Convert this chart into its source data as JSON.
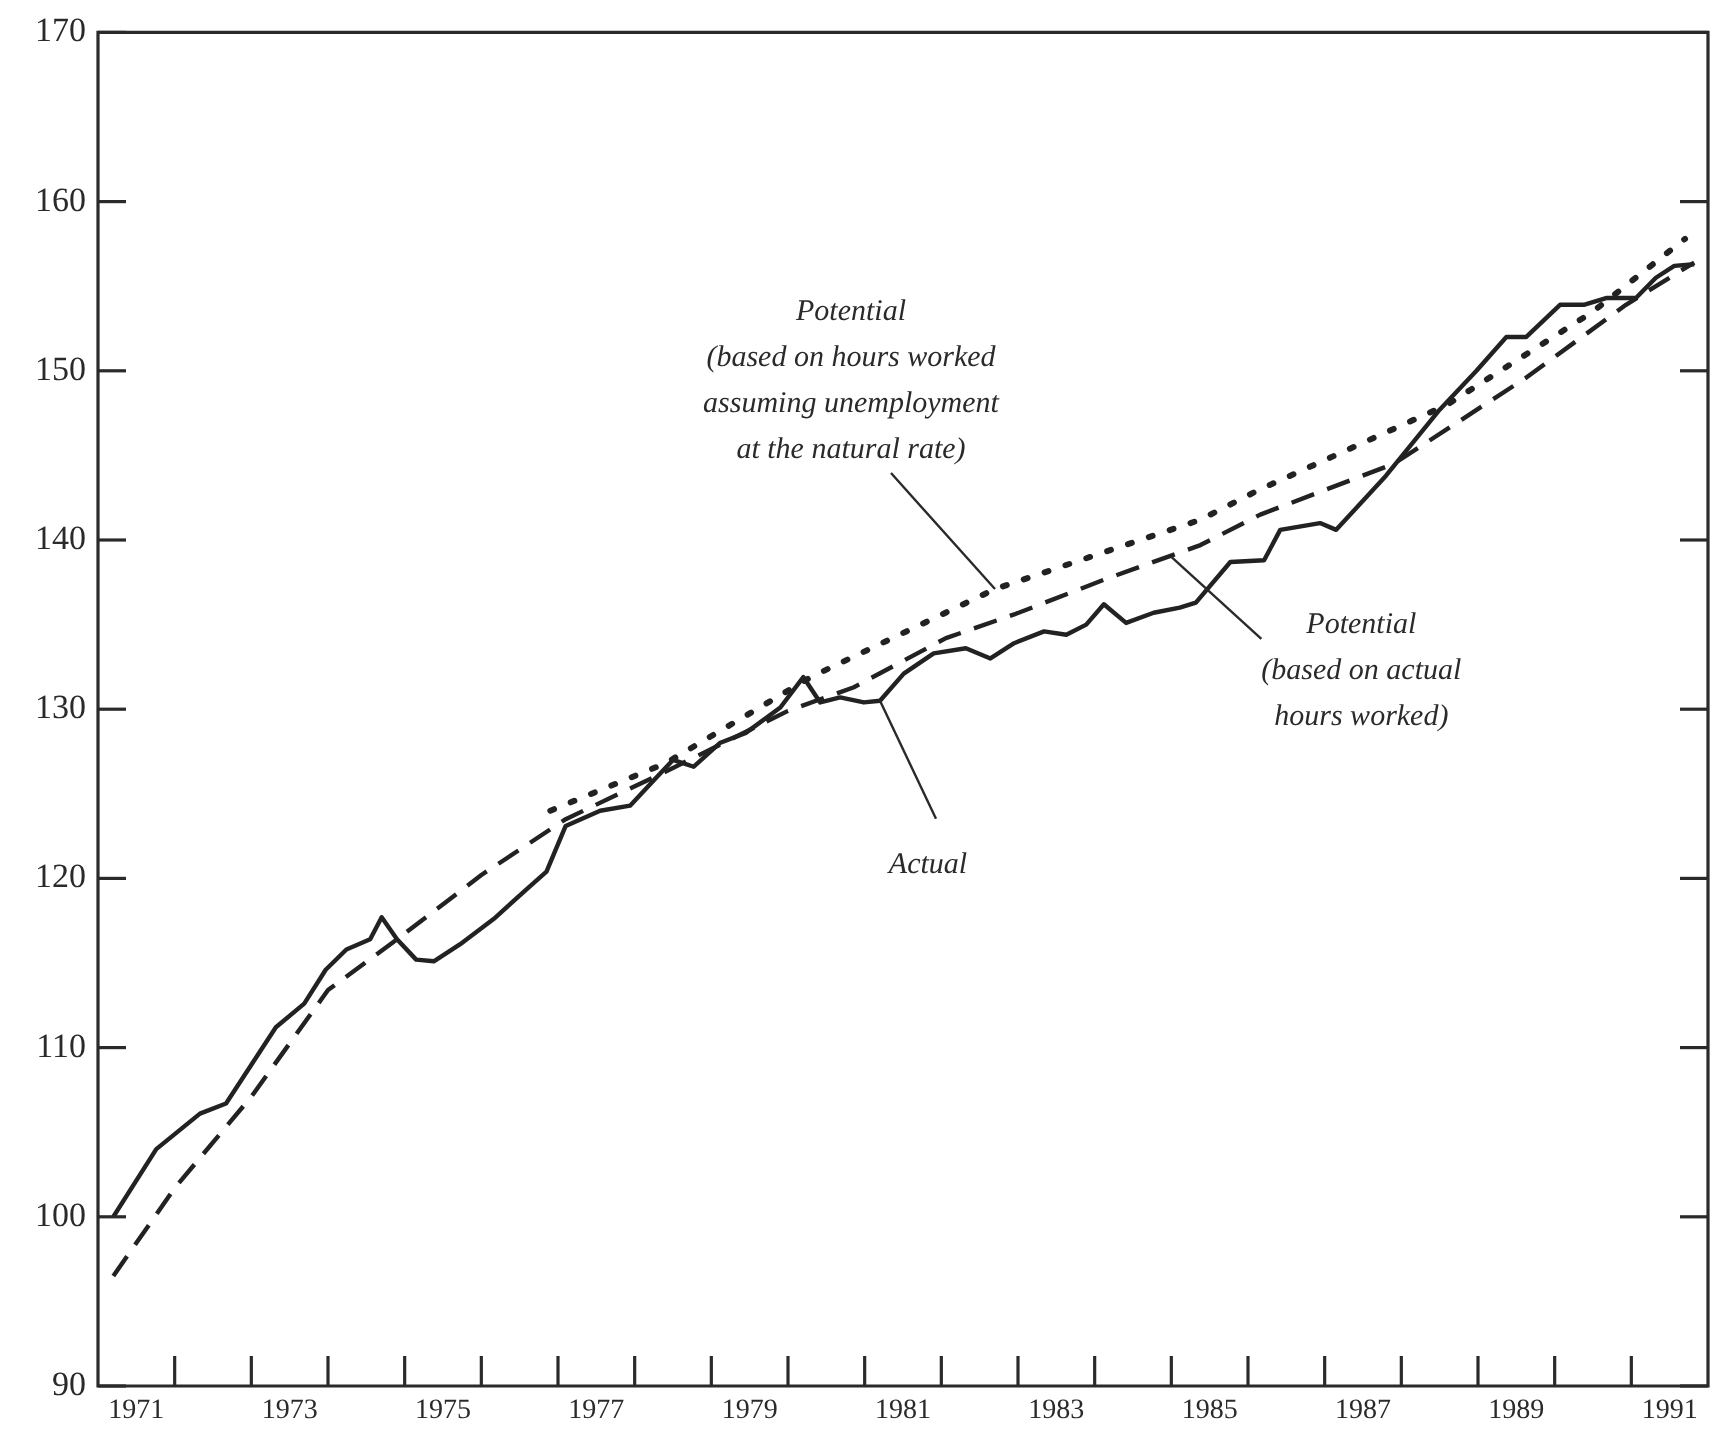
{
  "chart_data": {
    "type": "line",
    "xlim": [
      1971,
      1992
    ],
    "xticks": [
      {
        "value": 1971.5,
        "label": "1971"
      },
      {
        "value": 1972,
        "label": null
      },
      {
        "value": 1973,
        "label": null
      },
      {
        "value": 1973.5,
        "label": "1973"
      },
      {
        "value": 1974,
        "label": null
      },
      {
        "value": 1975,
        "label": null
      },
      {
        "value": 1975.5,
        "label": "1975"
      },
      {
        "value": 1976,
        "label": null
      },
      {
        "value": 1977,
        "label": null
      },
      {
        "value": 1977.5,
        "label": "1977"
      },
      {
        "value": 1978,
        "label": null
      },
      {
        "value": 1979,
        "label": null
      },
      {
        "value": 1979.5,
        "label": "1979"
      },
      {
        "value": 1980,
        "label": null
      },
      {
        "value": 1981,
        "label": null
      },
      {
        "value": 1981.5,
        "label": "1981"
      },
      {
        "value": 1982,
        "label": null
      },
      {
        "value": 1983,
        "label": null
      },
      {
        "value": 1983.5,
        "label": "1983"
      },
      {
        "value": 1984,
        "label": null
      },
      {
        "value": 1985,
        "label": null
      },
      {
        "value": 1985.5,
        "label": "1985"
      },
      {
        "value": 1986,
        "label": null
      },
      {
        "value": 1987,
        "label": null
      },
      {
        "value": 1987.5,
        "label": "1987"
      },
      {
        "value": 1988,
        "label": null
      },
      {
        "value": 1989,
        "label": null
      },
      {
        "value": 1989.5,
        "label": "1989"
      },
      {
        "value": 1990,
        "label": null
      },
      {
        "value": 1991,
        "label": null
      },
      {
        "value": 1991.5,
        "label": "1991"
      }
    ],
    "ylim": [
      90,
      170
    ],
    "yticks": [
      90,
      100,
      110,
      120,
      130,
      140,
      150,
      160,
      170
    ],
    "grid": false,
    "legend": false,
    "marker": "none",
    "series": [
      {
        "color": "#222222",
        "line_style": "solid",
        "x": [
          1971.2,
          1971.76,
          1972.33,
          1972.67,
          1973.06,
          1973.32,
          1973.69,
          1973.97,
          1974.24,
          1974.55,
          1974.7,
          1974.9,
          1975.15,
          1975.38,
          1975.72,
          1976.16,
          1976.6,
          1976.85,
          1977.1,
          1977.55,
          1977.94,
          1978.25,
          1978.5,
          1978.77,
          1979.11,
          1979.45,
          1979.9,
          1980.2,
          1980.42,
          1980.68,
          1980.99,
          1981.2,
          1981.51,
          1981.9,
          1982.32,
          1982.64,
          1982.95,
          1983.34,
          1983.63,
          1983.89,
          1984.12,
          1984.41,
          1984.77,
          1985.11,
          1985.32,
          1985.77,
          1986.21,
          1986.42,
          1986.94,
          1987.15,
          1987.8,
          1988.5,
          1988.98,
          1989.37,
          1989.63,
          1990.07,
          1990.38,
          1990.67,
          1991.06,
          1991.32,
          1991.56,
          1991.82
        ],
        "values": [
          100,
          104,
          106.1,
          106.7,
          109.4,
          111.2,
          112.6,
          114.6,
          115.8,
          116.4,
          117.7,
          116.4,
          115.2,
          115.1,
          116.1,
          117.6,
          119.4,
          120.4,
          123.1,
          124,
          124.3,
          125.8,
          127,
          126.6,
          128,
          128.6,
          130.1,
          131.9,
          130.4,
          130.7,
          130.4,
          130.5,
          132.1,
          133.3,
          133.6,
          133,
          133.9,
          134.6,
          134.4,
          135,
          136.2,
          135.1,
          135.7,
          136,
          136.3,
          138.7,
          138.8,
          140.6,
          141,
          140.6,
          143.8,
          147.7,
          150,
          152,
          152,
          153.9,
          153.9,
          154.3,
          154.3,
          155.5,
          156.2,
          156.3
        ]
      },
      {
        "color": "#222222",
        "line_style": "dashed",
        "x": [
          1971.2,
          1972,
          1973,
          1974,
          1974.9,
          1976,
          1977.1,
          1978.4,
          1980,
          1980.86,
          1982.06,
          1982.95,
          1984.15,
          1985.38,
          1986.16,
          1987.9,
          1989.63,
          1990.93,
          1991.82
        ],
        "values": [
          96.5,
          101.7,
          107.1,
          113.4,
          116.4,
          120.2,
          123.5,
          126.3,
          129.9,
          131.3,
          134.2,
          135.6,
          137.7,
          139.7,
          141.5,
          144.5,
          149.6,
          153.9,
          156.4
        ]
      },
      {
        "color": "#222222",
        "line_style": "dotted",
        "x": [
          1976.9,
          1978.4,
          1980.3,
          1982.7,
          1985.38,
          1986.16,
          1988.6,
          1990.5,
          1991.7
        ],
        "values": [
          124,
          126.8,
          131.9,
          137.1,
          141.2,
          143,
          148,
          153.5,
          157.8
        ]
      }
    ],
    "annotations": [
      {
        "text": "Potential\n(based on hours worked\nassuming unemployment\nat the natural rate)",
        "x": 1982.7,
        "y": 137.1
      },
      {
        "text": "Potential\n(based on actual\nhours worked)",
        "x": 1985,
        "y": 139
      },
      {
        "text": "Actual",
        "x": 1981.2,
        "y": 130.5
      }
    ]
  }
}
